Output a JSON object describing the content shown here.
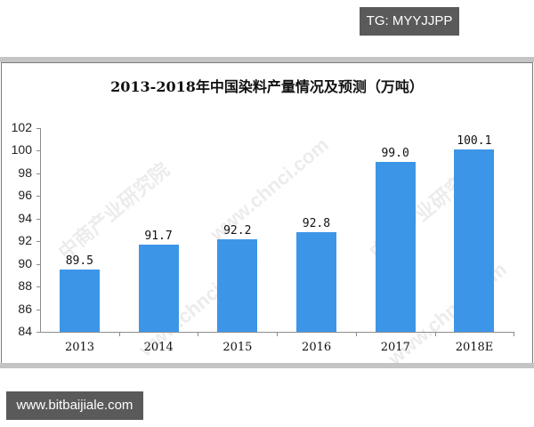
{
  "badges": {
    "top_right": "TG: MYYJJPP",
    "bottom_left": "www.bitbaijiale.com"
  },
  "watermark": {
    "text_cn": "中商产业研究院",
    "text_url": "www.chnci.com"
  },
  "chart_data": {
    "type": "bar",
    "title": "2013-2018年中国染料产量情况及预测（万吨）",
    "xlabel": "",
    "ylabel": "",
    "categories": [
      "2013",
      "2014",
      "2015",
      "2016",
      "2017",
      "2018E"
    ],
    "values": [
      89.5,
      91.7,
      92.2,
      92.8,
      99.0,
      100.1
    ],
    "value_labels": [
      "89.5",
      "91.7",
      "92.2",
      "92.8",
      "99.0",
      "100.1"
    ],
    "ylim": [
      84,
      102
    ],
    "yticks": [
      "102",
      "100",
      "98",
      "96",
      "94",
      "92",
      "90",
      "88",
      "86",
      "84"
    ],
    "grid": false,
    "legend": null,
    "bar_color": "#3d95e8"
  }
}
